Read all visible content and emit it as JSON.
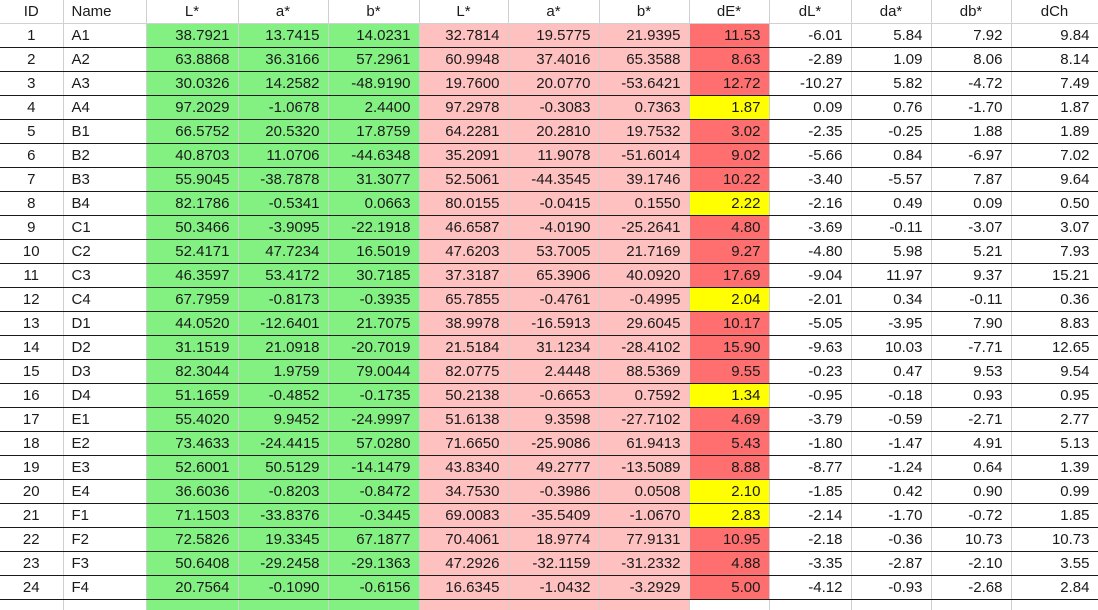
{
  "table": {
    "headers": [
      "ID",
      "Name",
      "L*",
      "a*",
      "b*",
      "L*",
      "a*",
      "b*",
      "dE*",
      "dL*",
      "da*",
      "db*",
      "dCh"
    ],
    "rows": [
      [
        "1",
        "A1",
        "38.7921",
        "13.7415",
        "14.0231",
        "32.7814",
        "19.5775",
        "21.9395",
        "11.53",
        "-6.01",
        "5.84",
        "7.92",
        "9.84"
      ],
      [
        "2",
        "A2",
        "63.8868",
        "36.3166",
        "57.2961",
        "60.9948",
        "37.4016",
        "65.3588",
        "8.63",
        "-2.89",
        "1.09",
        "8.06",
        "8.14"
      ],
      [
        "3",
        "A3",
        "30.0326",
        "14.2582",
        "-48.9190",
        "19.7600",
        "20.0770",
        "-53.6421",
        "12.72",
        "-10.27",
        "5.82",
        "-4.72",
        "7.49"
      ],
      [
        "4",
        "A4",
        "97.2029",
        "-1.0678",
        "2.4400",
        "97.2978",
        "-0.3083",
        "0.7363",
        "1.87",
        "0.09",
        "0.76",
        "-1.70",
        "1.87"
      ],
      [
        "5",
        "B1",
        "66.5752",
        "20.5320",
        "17.8759",
        "64.2281",
        "20.2810",
        "19.7532",
        "3.02",
        "-2.35",
        "-0.25",
        "1.88",
        "1.89"
      ],
      [
        "6",
        "B2",
        "40.8703",
        "11.0706",
        "-44.6348",
        "35.2091",
        "11.9078",
        "-51.6014",
        "9.02",
        "-5.66",
        "0.84",
        "-6.97",
        "7.02"
      ],
      [
        "7",
        "B3",
        "55.9045",
        "-38.7878",
        "31.3077",
        "52.5061",
        "-44.3545",
        "39.1746",
        "10.22",
        "-3.40",
        "-5.57",
        "7.87",
        "9.64"
      ],
      [
        "8",
        "B4",
        "82.1786",
        "-0.5341",
        "0.0663",
        "80.0155",
        "-0.0415",
        "0.1550",
        "2.22",
        "-2.16",
        "0.49",
        "0.09",
        "0.50"
      ],
      [
        "9",
        "C1",
        "50.3466",
        "-3.9095",
        "-22.1918",
        "46.6587",
        "-4.0190",
        "-25.2641",
        "4.80",
        "-3.69",
        "-0.11",
        "-3.07",
        "3.07"
      ],
      [
        "10",
        "C2",
        "52.4171",
        "47.7234",
        "16.5019",
        "47.6203",
        "53.7005",
        "21.7169",
        "9.27",
        "-4.80",
        "5.98",
        "5.21",
        "7.93"
      ],
      [
        "11",
        "C3",
        "46.3597",
        "53.4172",
        "30.7185",
        "37.3187",
        "65.3906",
        "40.0920",
        "17.69",
        "-9.04",
        "11.97",
        "9.37",
        "15.21"
      ],
      [
        "12",
        "C4",
        "67.7959",
        "-0.8173",
        "-0.3935",
        "65.7855",
        "-0.4761",
        "-0.4995",
        "2.04",
        "-2.01",
        "0.34",
        "-0.11",
        "0.36"
      ],
      [
        "13",
        "D1",
        "44.0520",
        "-12.6401",
        "21.7075",
        "38.9978",
        "-16.5913",
        "29.6045",
        "10.17",
        "-5.05",
        "-3.95",
        "7.90",
        "8.83"
      ],
      [
        "14",
        "D2",
        "31.1519",
        "21.0918",
        "-20.7019",
        "21.5184",
        "31.1234",
        "-28.4102",
        "15.90",
        "-9.63",
        "10.03",
        "-7.71",
        "12.65"
      ],
      [
        "15",
        "D3",
        "82.3044",
        "1.9759",
        "79.0044",
        "82.0775",
        "2.4448",
        "88.5369",
        "9.55",
        "-0.23",
        "0.47",
        "9.53",
        "9.54"
      ],
      [
        "16",
        "D4",
        "51.1659",
        "-0.4852",
        "-0.1735",
        "50.2138",
        "-0.6653",
        "0.7592",
        "1.34",
        "-0.95",
        "-0.18",
        "0.93",
        "0.95"
      ],
      [
        "17",
        "E1",
        "55.4020",
        "9.9452",
        "-24.9997",
        "51.6138",
        "9.3598",
        "-27.7102",
        "4.69",
        "-3.79",
        "-0.59",
        "-2.71",
        "2.77"
      ],
      [
        "18",
        "E2",
        "73.4633",
        "-24.4415",
        "57.0280",
        "71.6650",
        "-25.9086",
        "61.9413",
        "5.43",
        "-1.80",
        "-1.47",
        "4.91",
        "5.13"
      ],
      [
        "19",
        "E3",
        "52.6001",
        "50.5129",
        "-14.1479",
        "43.8340",
        "49.2777",
        "-13.5089",
        "8.88",
        "-8.77",
        "-1.24",
        "0.64",
        "1.39"
      ],
      [
        "20",
        "E4",
        "36.6036",
        "-0.8203",
        "-0.8472",
        "34.7530",
        "-0.3986",
        "0.0508",
        "2.10",
        "-1.85",
        "0.42",
        "0.90",
        "0.99"
      ],
      [
        "21",
        "F1",
        "71.1503",
        "-33.8376",
        "-0.3445",
        "69.0083",
        "-35.5409",
        "-1.0670",
        "2.83",
        "-2.14",
        "-1.70",
        "-0.72",
        "1.85"
      ],
      [
        "22",
        "F2",
        "72.5826",
        "19.3345",
        "67.1877",
        "70.4061",
        "18.9774",
        "77.9131",
        "10.95",
        "-2.18",
        "-0.36",
        "10.73",
        "10.73"
      ],
      [
        "23",
        "F3",
        "50.6408",
        "-29.2458",
        "-29.1363",
        "47.2926",
        "-32.1159",
        "-31.2332",
        "4.88",
        "-3.35",
        "-2.87",
        "-2.10",
        "3.55"
      ],
      [
        "24",
        "F4",
        "20.7564",
        "-0.1090",
        "-0.6156",
        "16.6345",
        "-1.0432",
        "-3.2929",
        "5.00",
        "-4.12",
        "-0.93",
        "-2.68",
        "2.84"
      ]
    ]
  },
  "colors": {
    "reference_lab": "#82f182",
    "sample_lab": "#ffc0c0",
    "de_high": "#ff6f6f",
    "de_low": "#ffff00"
  }
}
